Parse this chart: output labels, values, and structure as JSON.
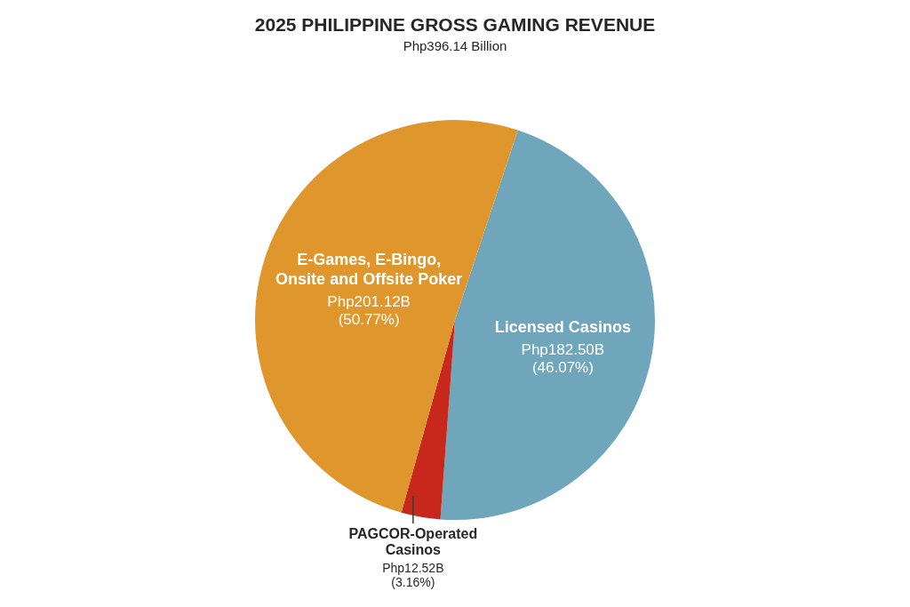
{
  "chart_data": {
    "type": "pie",
    "title": "2025 PHILIPPINE GROSS GAMING REVENUE",
    "subtitle": "Php396.14 Billion",
    "categories": [
      "Licensed Casinos",
      "PAGCOR-Operated Casinos",
      "E-Games, E-Bingo, Onsite and Offsite Poker"
    ],
    "values": [
      46.07,
      3.16,
      50.77
    ],
    "colors": [
      "#6fa6bb",
      "#c8281c",
      "#df962c"
    ],
    "value_labels": [
      "Php182.50B (46.07%)",
      "Php12.52B (3.16%)",
      "Php201.12B (50.77%)"
    ]
  }
}
